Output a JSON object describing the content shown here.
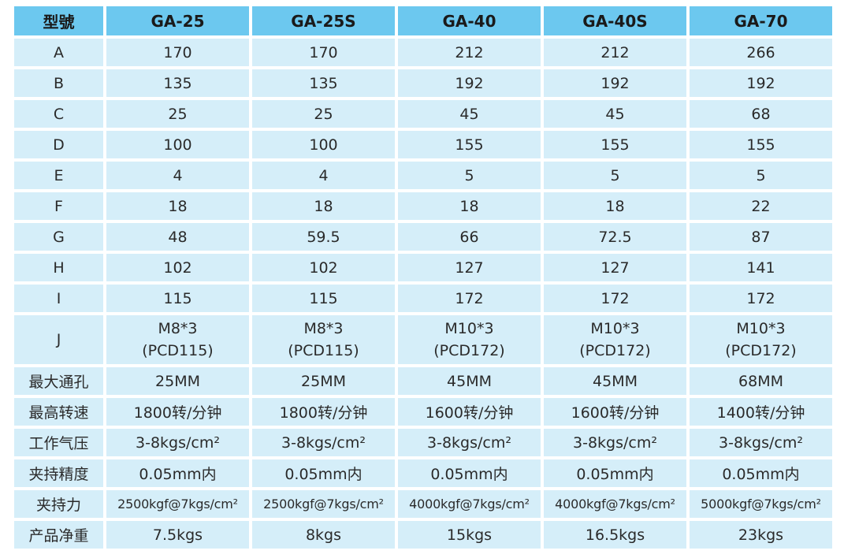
{
  "header": [
    "型號",
    "GA-25",
    "GA-25S",
    "GA-40",
    "GA-40S",
    "GA-70"
  ],
  "rows": [
    {
      "label": "A",
      "values": [
        "170",
        "170",
        "212",
        "212",
        "266"
      ]
    },
    {
      "label": "B",
      "values": [
        "135",
        "135",
        "192",
        "192",
        "192"
      ]
    },
    {
      "label": "C",
      "values": [
        "25",
        "25",
        "45",
        "45",
        "68"
      ]
    },
    {
      "label": "D",
      "values": [
        "100",
        "100",
        "155",
        "155",
        "155"
      ]
    },
    {
      "label": "E",
      "values": [
        "4",
        "4",
        "5",
        "5",
        "5"
      ]
    },
    {
      "label": "F",
      "values": [
        "18",
        "18",
        "18",
        "18",
        "22"
      ]
    },
    {
      "label": "G",
      "values": [
        "48",
        "59.5",
        "66",
        "72.5",
        "87"
      ]
    },
    {
      "label": "H",
      "values": [
        "102",
        "102",
        "127",
        "127",
        "141"
      ]
    },
    {
      "label": "I",
      "values": [
        "115",
        "115",
        "172",
        "172",
        "172"
      ]
    },
    {
      "label": "J",
      "values": [
        [
          "M8*3",
          "(PCD115)"
        ],
        [
          "M8*3",
          "(PCD115)"
        ],
        [
          "M10*3",
          "(PCD172)"
        ],
        [
          "M10*3",
          "(PCD172)"
        ],
        [
          "M10*3",
          "(PCD172)"
        ]
      ]
    },
    {
      "label": "最大通孔",
      "values": [
        "25MM",
        "25MM",
        "45MM",
        "45MM",
        "68MM"
      ]
    },
    {
      "label": "最高转速",
      "values": [
        "1800转/分钟",
        "1800转/分钟",
        "1600转/分钟",
        "1600转/分钟",
        "1400转/分钟"
      ]
    },
    {
      "label": "工作气压",
      "values": [
        "3-8kgs/cm²",
        "3-8kgs/cm²",
        "3-8kgs/cm²",
        "3-8kgs/cm²",
        "3-8kgs/cm²"
      ]
    },
    {
      "label": "夹持精度",
      "values": [
        "0.05mm内",
        "0.05mm内",
        "0.05mm内",
        "0.05mm内",
        "0.05mm内"
      ]
    },
    {
      "label": "夹持力",
      "values": [
        "2500kgf@7kgs/cm²",
        "2500kgf@7kgs/cm²",
        "4000kgf@7kgs/cm²",
        "4000kgf@7kgs/cm²",
        "5000kgf@7kgs/cm²"
      ]
    },
    {
      "label": "产品净重",
      "values": [
        "7.5kgs",
        "8kgs",
        "15kgs",
        "16.5kgs",
        "23kgs"
      ]
    }
  ],
  "colors": {
    "header_bg": "#6cc8ef",
    "cell_bg": "#d5eef9"
  }
}
